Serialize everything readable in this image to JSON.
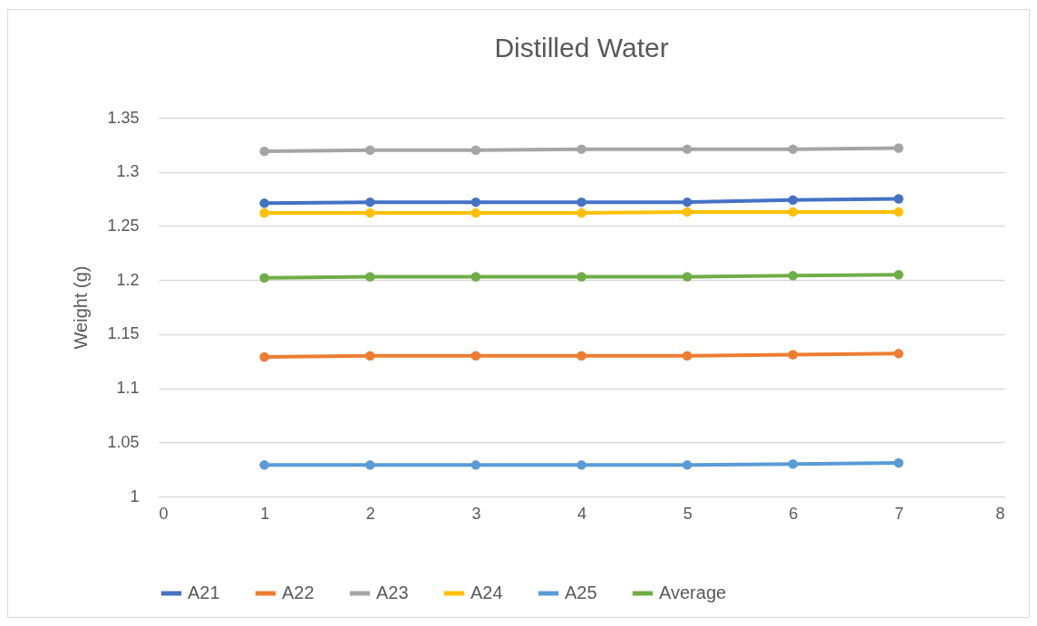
{
  "chart_data": {
    "type": "line",
    "title": "Distilled Water",
    "ylabel": "Weight (g)",
    "x": [
      1,
      2,
      3,
      4,
      5,
      6,
      7
    ],
    "series": [
      {
        "name": "A21",
        "color": "#4472c4",
        "values": [
          1.271,
          1.272,
          1.272,
          1.272,
          1.272,
          1.274,
          1.275
        ]
      },
      {
        "name": "A22",
        "color": "#ed7d31",
        "values": [
          1.129,
          1.13,
          1.13,
          1.13,
          1.13,
          1.131,
          1.132
        ]
      },
      {
        "name": "A23",
        "color": "#a5a5a5",
        "values": [
          1.319,
          1.32,
          1.32,
          1.321,
          1.321,
          1.321,
          1.322
        ]
      },
      {
        "name": "A24",
        "color": "#ffc000",
        "values": [
          1.262,
          1.262,
          1.262,
          1.262,
          1.263,
          1.263,
          1.263
        ]
      },
      {
        "name": "A25",
        "color": "#5b9bd5",
        "values": [
          1.029,
          1.029,
          1.029,
          1.029,
          1.029,
          1.03,
          1.031
        ]
      },
      {
        "name": "Average",
        "color": "#70ad47",
        "values": [
          1.202,
          1.203,
          1.203,
          1.203,
          1.203,
          1.204,
          1.205
        ]
      }
    ],
    "xlim": [
      0,
      8
    ],
    "xticks": [
      0,
      1,
      2,
      3,
      4,
      5,
      6,
      7,
      8
    ],
    "ylim": [
      1,
      1.35
    ],
    "yticks": [
      1,
      1.05,
      1.1,
      1.15,
      1.2,
      1.25,
      1.3,
      1.35
    ],
    "grid": "y",
    "legend": "bottom",
    "marker": "circle",
    "line_style": "solid"
  }
}
